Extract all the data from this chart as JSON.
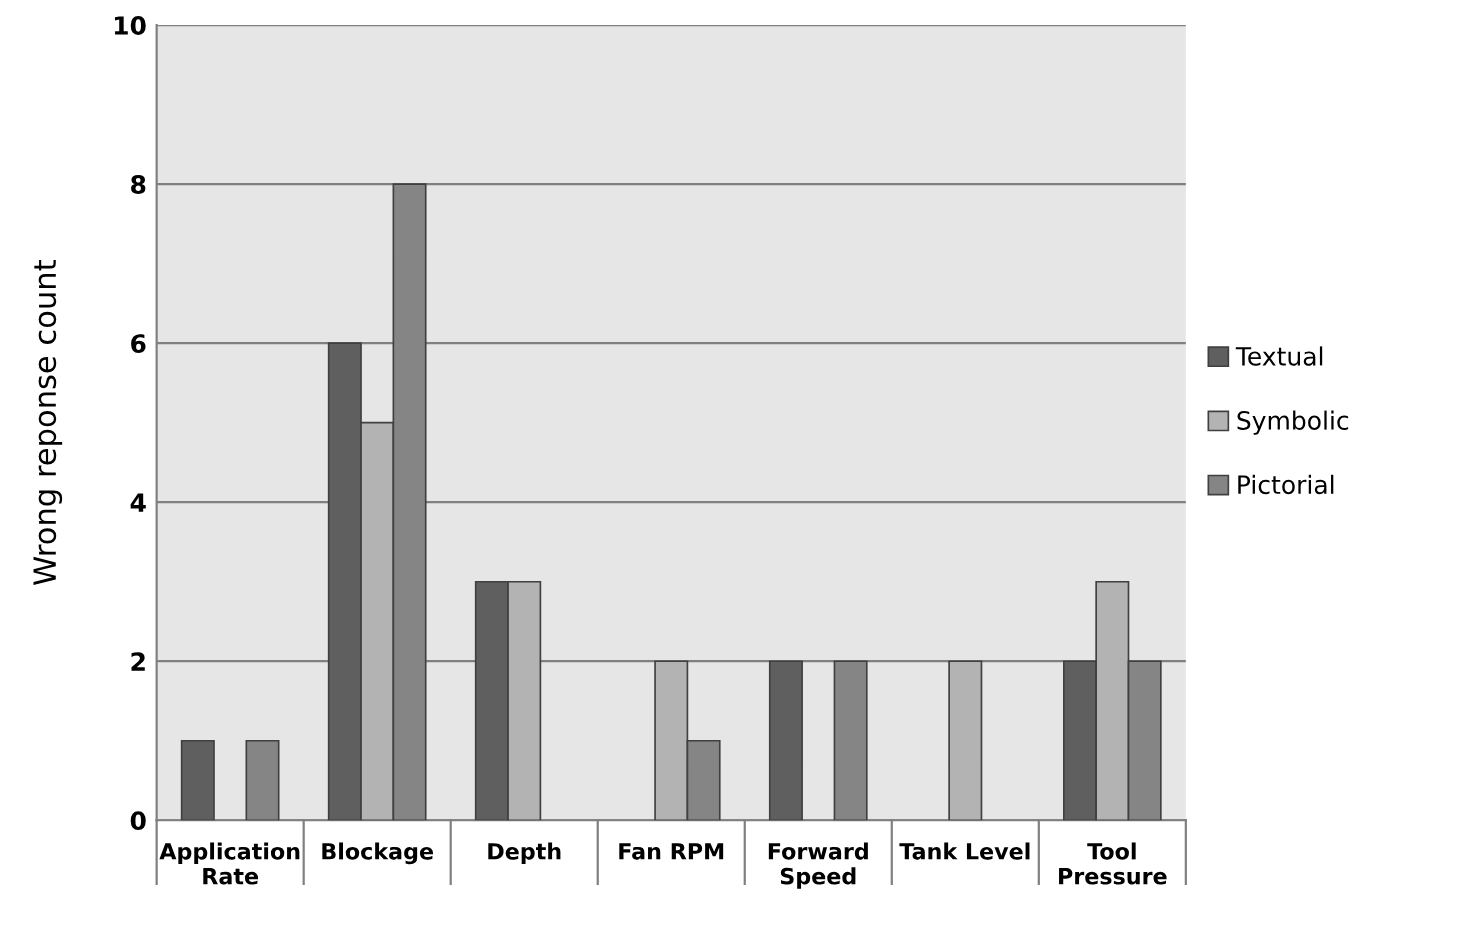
{
  "chart_data": {
    "type": "bar",
    "ylabel": "Wrong reponse count",
    "categories": [
      "Application\nRate",
      "Blockage",
      "Depth",
      "Fan RPM",
      "Forward\nSpeed",
      "Tank Level",
      "Tool\nPressure"
    ],
    "series": [
      {
        "name": "Textual",
        "color": "#5f5f5f",
        "values": [
          1,
          6,
          3,
          null,
          2,
          null,
          2
        ]
      },
      {
        "name": "Symbolic",
        "color": "#b3b3b3",
        "values": [
          null,
          5,
          3,
          2,
          null,
          2,
          3
        ]
      },
      {
        "name": "Pictorial",
        "color": "#858585",
        "values": [
          1,
          8,
          null,
          1,
          2,
          null,
          2
        ]
      }
    ],
    "ylim": [
      0,
      10
    ],
    "yticks": [
      0,
      2,
      4,
      6,
      8,
      10
    ],
    "grid": "y",
    "legend": "right"
  }
}
